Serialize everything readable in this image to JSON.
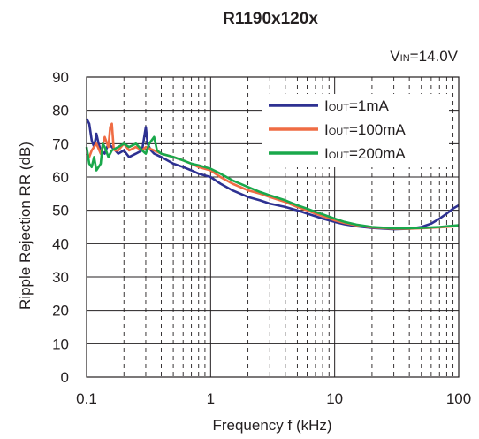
{
  "chart_data": {
    "type": "line",
    "title": "R1190x120x",
    "condition": {
      "main": "V",
      "sub": "IN",
      "rest": "=14.0V"
    },
    "xlabel": "Frequency f (kHz)",
    "ylabel": "Ripple Rejection RR (dB)",
    "x_scale": "log",
    "xlim": [
      0.1,
      100
    ],
    "ylim": [
      0,
      90
    ],
    "x_ticks": [
      "0.1",
      "1",
      "10",
      "100"
    ],
    "y_ticks": [
      "0",
      "10",
      "20",
      "30",
      "40",
      "50",
      "60",
      "70",
      "80",
      "90"
    ],
    "grid": true,
    "legend_position": "top-right",
    "series": [
      {
        "name": "IOUT=1mA",
        "label_main": "I",
        "label_sub": "OUT",
        "label_rest": "=1mA",
        "color": "#2e3192",
        "points": [
          [
            0.1,
            77.5
          ],
          [
            0.105,
            76
          ],
          [
            0.11,
            71
          ],
          [
            0.115,
            69
          ],
          [
            0.12,
            73
          ],
          [
            0.125,
            70
          ],
          [
            0.13,
            68
          ],
          [
            0.14,
            67
          ],
          [
            0.15,
            70
          ],
          [
            0.16,
            69
          ],
          [
            0.17,
            68
          ],
          [
            0.18,
            67
          ],
          [
            0.2,
            68
          ],
          [
            0.22,
            66
          ],
          [
            0.25,
            67
          ],
          [
            0.28,
            68
          ],
          [
            0.3,
            75
          ],
          [
            0.31,
            70
          ],
          [
            0.33,
            68
          ],
          [
            0.35,
            67
          ],
          [
            0.4,
            66
          ],
          [
            0.5,
            64
          ],
          [
            0.6,
            63
          ],
          [
            0.7,
            62
          ],
          [
            0.8,
            61
          ],
          [
            1,
            60
          ],
          [
            1.2,
            58
          ],
          [
            1.5,
            56
          ],
          [
            2,
            54
          ],
          [
            2.5,
            53
          ],
          [
            3,
            52
          ],
          [
            4,
            51
          ],
          [
            5,
            50
          ],
          [
            6,
            49
          ],
          [
            7,
            48.2
          ],
          [
            8,
            47.5
          ],
          [
            10,
            46.5
          ],
          [
            12,
            45.8
          ],
          [
            15,
            45.2
          ],
          [
            20,
            44.7
          ],
          [
            30,
            44.3
          ],
          [
            40,
            44.5
          ],
          [
            50,
            45
          ],
          [
            60,
            46
          ],
          [
            70,
            47.5
          ],
          [
            80,
            49
          ],
          [
            90,
            50.5
          ],
          [
            100,
            51.5
          ]
        ]
      },
      {
        "name": "IOUT=100mA",
        "label_main": "I",
        "label_sub": "OUT",
        "label_rest": "=100mA",
        "color": "#ef6c44",
        "points": [
          [
            0.1,
            67
          ],
          [
            0.105,
            66
          ],
          [
            0.11,
            68
          ],
          [
            0.12,
            70
          ],
          [
            0.13,
            67
          ],
          [
            0.14,
            72
          ],
          [
            0.15,
            69
          ],
          [
            0.155,
            75
          ],
          [
            0.16,
            76
          ],
          [
            0.165,
            69
          ],
          [
            0.17,
            68
          ],
          [
            0.18,
            68
          ],
          [
            0.2,
            70
          ],
          [
            0.22,
            68
          ],
          [
            0.25,
            69
          ],
          [
            0.28,
            68
          ],
          [
            0.3,
            69
          ],
          [
            0.35,
            68
          ],
          [
            0.4,
            67
          ],
          [
            0.5,
            66
          ],
          [
            0.6,
            65
          ],
          [
            0.7,
            64
          ],
          [
            0.8,
            63
          ],
          [
            1,
            62
          ],
          [
            1.2,
            60
          ],
          [
            1.5,
            58
          ],
          [
            2,
            56
          ],
          [
            2.5,
            55
          ],
          [
            3,
            54
          ],
          [
            4,
            52.5
          ],
          [
            5,
            51
          ],
          [
            6,
            50
          ],
          [
            7,
            49
          ],
          [
            8,
            48.3
          ],
          [
            10,
            47
          ],
          [
            12,
            46.2
          ],
          [
            15,
            45.5
          ],
          [
            20,
            44.9
          ],
          [
            30,
            44.5
          ],
          [
            40,
            44.5
          ],
          [
            50,
            44.6
          ],
          [
            70,
            44.9
          ],
          [
            100,
            45.3
          ]
        ]
      },
      {
        "name": "IOUT=200mA",
        "label_main": "I",
        "label_sub": "OUT",
        "label_rest": "=200mA",
        "color": "#1aa84b",
        "points": [
          [
            0.1,
            69
          ],
          [
            0.105,
            64
          ],
          [
            0.11,
            63
          ],
          [
            0.115,
            66
          ],
          [
            0.12,
            62
          ],
          [
            0.13,
            64
          ],
          [
            0.135,
            70
          ],
          [
            0.14,
            69
          ],
          [
            0.15,
            66
          ],
          [
            0.16,
            68
          ],
          [
            0.18,
            69
          ],
          [
            0.2,
            70
          ],
          [
            0.22,
            69
          ],
          [
            0.25,
            70
          ],
          [
            0.28,
            68
          ],
          [
            0.3,
            67
          ],
          [
            0.32,
            70
          ],
          [
            0.35,
            72
          ],
          [
            0.37,
            68
          ],
          [
            0.4,
            67
          ],
          [
            0.5,
            66
          ],
          [
            0.6,
            65
          ],
          [
            0.7,
            64
          ],
          [
            0.8,
            63.5
          ],
          [
            1,
            62.5
          ],
          [
            1.2,
            61
          ],
          [
            1.5,
            59
          ],
          [
            2,
            57
          ],
          [
            2.5,
            55.5
          ],
          [
            3,
            54.5
          ],
          [
            4,
            53
          ],
          [
            5,
            51.5
          ],
          [
            6,
            50.5
          ],
          [
            7,
            49.5
          ],
          [
            8,
            48.8
          ],
          [
            10,
            47.5
          ],
          [
            12,
            46.5
          ],
          [
            15,
            45.7
          ],
          [
            20,
            45
          ],
          [
            30,
            44.6
          ],
          [
            40,
            44.6
          ],
          [
            50,
            44.7
          ],
          [
            70,
            45
          ],
          [
            100,
            45.5
          ]
        ]
      }
    ]
  }
}
